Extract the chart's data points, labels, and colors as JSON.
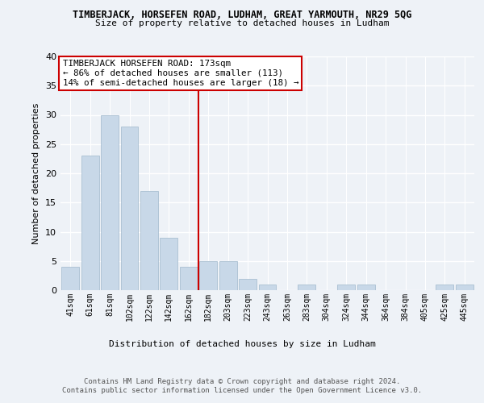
{
  "title1": "TIMBERJACK, HORSEFEN ROAD, LUDHAM, GREAT YARMOUTH, NR29 5QG",
  "title2": "Size of property relative to detached houses in Ludham",
  "xlabel": "Distribution of detached houses by size in Ludham",
  "ylabel": "Number of detached properties",
  "bar_labels": [
    "41sqm",
    "61sqm",
    "81sqm",
    "102sqm",
    "122sqm",
    "142sqm",
    "162sqm",
    "182sqm",
    "203sqm",
    "223sqm",
    "243sqm",
    "263sqm",
    "283sqm",
    "304sqm",
    "324sqm",
    "344sqm",
    "364sqm",
    "384sqm",
    "405sqm",
    "425sqm",
    "445sqm"
  ],
  "bar_values": [
    4,
    23,
    30,
    28,
    17,
    9,
    4,
    5,
    5,
    2,
    1,
    0,
    1,
    0,
    1,
    1,
    0,
    0,
    0,
    1,
    1
  ],
  "bar_color": "#c8d8e8",
  "bar_edgecolor": "#a0b8cc",
  "ylim": [
    0,
    40
  ],
  "yticks": [
    0,
    5,
    10,
    15,
    20,
    25,
    30,
    35,
    40
  ],
  "annotation_title": "TIMBERJACK HORSEFEN ROAD: 173sqm",
  "annotation_line1": "← 86% of detached houses are smaller (113)",
  "annotation_line2": "14% of semi-detached houses are larger (18) →",
  "footer1": "Contains HM Land Registry data © Crown copyright and database right 2024.",
  "footer2": "Contains public sector information licensed under the Open Government Licence v3.0.",
  "bg_color": "#eef2f7",
  "plot_bg_color": "#eef2f7"
}
